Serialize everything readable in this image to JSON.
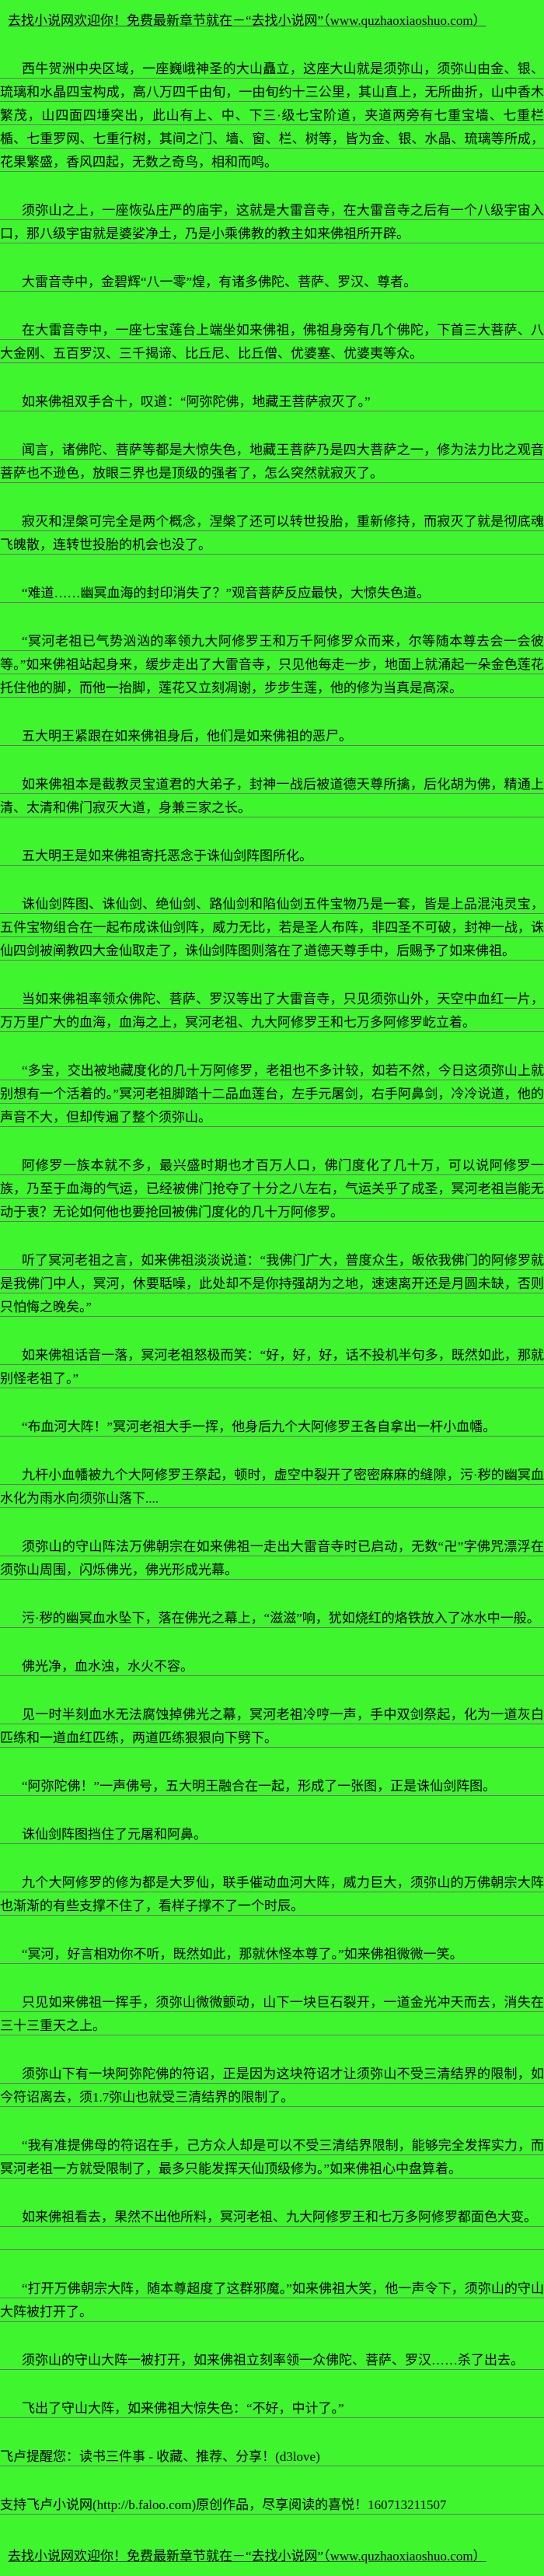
{
  "page": {
    "background_color": "#3ef52e",
    "text_color": "#000000",
    "rule_color": "#6f6f6f"
  },
  "top_promo": {
    "text": "去找小说网欢迎你！免费最新章节就在－“去找小说网”（www.quzhaoxiaoshuo.com）",
    "site_url": "www.quzhaoxiaoshuo.com"
  },
  "content": {
    "paragraphs": [
      {
        "text": "西牛贺洲中央区域，一座巍峨神圣的大山矗立，这座大山就是须弥山，须弥山由金、银、琉璃和水晶四宝构成，高八万四千由旬，一由旬约十三公里，其山直上，无所曲折，山中香木繁茂，山四面四埵突出，此山有上、中、下三·级七宝阶道，夹道两旁有七重宝墙、七重栏楯、七重罗网、七重行树，其间之门、墙、窗、栏、树等，皆为金、银、水晶、琉璃等所成，花果繁盛，香风四起，无数之奇鸟，相和而鸣。",
        "classes": ""
      },
      {
        "text": "须弥山之上，一座恢弘庄严的庙宇，这就是大雷音寺，在大雷音寺之后有一个八级宇宙入口，那八级宇宙就是婆娑净土，乃是小乘佛教的教主如来佛祖所开辟。",
        "classes": ""
      },
      {
        "text": "大雷音寺中，金碧辉“八一零”煌，有诸多佛陀、菩萨、罗汉、尊者。",
        "classes": ""
      },
      {
        "text": "在大雷音寺中，一座七宝莲台上端坐如来佛祖，佛祖身旁有几个佛陀，下首三大菩萨、八大金刚、五百罗汉、三千揭谛、比丘尼、比丘僧、优婆塞、优婆夷等众。",
        "classes": ""
      },
      {
        "text": "如来佛祖双手合十，叹道：“阿弥陀佛，地藏王菩萨寂灭了。”",
        "classes": ""
      },
      {
        "text": "闻言，诸佛陀、菩萨等都是大惊失色，地藏王菩萨乃是四大菩萨之一，修为法力比之观音菩萨也不逊色，放眼三界也是顶级的强者了，怎么突然就寂灭了。",
        "classes": ""
      },
      {
        "text": "寂灭和涅槃可完全是两个概念，涅槃了还可以转世投胎，重新修持，而寂灭了就是彻底魂飞魄散，连转世投胎的机会也没了。",
        "classes": ""
      },
      {
        "text": "“难道……幽冥血海的封印消失了？”观音菩萨反应最快，大惊失色道。",
        "classes": ""
      },
      {
        "text": "“冥河老祖已气势汹汹的率领九大阿修罗王和万千阿修罗众而来，尔等随本尊去会一会彼等。”如来佛祖站起身来，缓步走出了大雷音寺，只见他每走一步，地面上就涌起一朵金色莲花托住他的脚，而他一抬脚，莲花又立刻凋谢，步步生莲，他的修为当真是高深。",
        "classes": ""
      },
      {
        "text": "五大明王紧跟在如来佛祖身后，他们是如来佛祖的恶尸。",
        "classes": ""
      },
      {
        "text": "如来佛祖本是截教灵宝道君的大弟子，封神一战后被道德天尊所擒，后化胡为佛，精通上清、太清和佛门寂灭大道，身兼三家之长。",
        "classes": ""
      },
      {
        "text": "五大明王是如来佛祖寄托恶念于诛仙剑阵图所化。",
        "classes": ""
      },
      {
        "text": "诛仙剑阵图、诛仙剑、绝仙剑、路仙剑和陷仙剑五件宝物乃是一套，皆是上品混沌灵宝，五件宝物组合在一起布成诛仙剑阵，威力无比，若是圣人布阵，非四圣不可破，封神一战，诛仙四剑被阐教四大金仙取走了，诛仙剑阵图则落在了道德天尊手中，后赐予了如来佛祖。",
        "classes": ""
      },
      {
        "text": "当如来佛祖率领众佛陀、菩萨、罗汉等出了大雷音寺，只见须弥山外，天空中血红一片，万万里广大的血海，血海之上，冥河老祖、九大阿修罗王和七万多阿修罗屹立着。",
        "classes": ""
      },
      {
        "text": "“多宝，交出被地藏度化的几十万阿修罗，老祖也不多计较，如若不然，今日这须弥山上就别想有一个活着的。”冥河老祖脚踏十二品血莲台，左手元屠剑，右手阿鼻剑，冷冷说道，他的声音不大，但却传遍了整个须弥山。",
        "classes": ""
      },
      {
        "text": "阿修罗一族本就不多，最兴盛时期也才百万人口，佛门度化了几十万，可以说阿修罗一族，乃至于血海的气运，已经被佛门抢夺了十分之八左右，气运关乎了成圣，冥河老祖岂能无动于衷？无论如何他也要抢回被佛门度化的几十万阿修罗。",
        "classes": ""
      },
      {
        "text": "听了冥河老祖之言，如来佛祖淡淡说道：“我佛门广大，普度众生，皈依我佛门的阿修罗就是我佛门中人，冥河，休要聒噪，此处却不是你持强胡为之地，速速离开还是月圆未缺，否则只怕悔之晚矣。”",
        "classes": ""
      },
      {
        "text": "如来佛祖话音一落，冥河老祖怒极而笑：“好，好，好，话不投机半句多，既然如此，那就别怪老祖了。”",
        "classes": ""
      },
      {
        "text": "“布血河大阵！”冥河老祖大手一挥，他身后九个大阿修罗王各自拿出一杆小血幡。",
        "classes": ""
      },
      {
        "text": "九杆小血幡被九个大阿修罗王祭起，顿时，虚空中裂开了密密麻麻的缝隙，污·秽的幽冥血水化为雨水向须弥山落下....",
        "classes": ""
      },
      {
        "text": "须弥山的守山阵法万佛朝宗在如来佛祖一走出大雷音寺时已启动，无数“卍”字佛咒漂浮在须弥山周围，闪烁佛光，佛光形成光幕。",
        "classes": ""
      },
      {
        "text": "污·秽的幽冥血水坠下，落在佛光之幕上，“滋滋”响，犹如烧红的烙铁放入了冰水中一般。",
        "classes": ""
      },
      {
        "text": "佛光净，血水浊，水火不容。",
        "classes": ""
      },
      {
        "text": "见一时半刻血水无法腐蚀掉佛光之幕，冥河老祖冷哼一声，手中双剑祭起，化为一道灰白匹练和一道血红匹练，两道匹练狠狠向下劈下。",
        "classes": ""
      },
      {
        "text": "“阿弥陀佛！”一声佛号，五大明王融合在一起，形成了一张图，正是诛仙剑阵图。",
        "classes": ""
      },
      {
        "text": "诛仙剑阵图挡住了元屠和阿鼻。",
        "classes": ""
      },
      {
        "text": "九个大阿修罗的修为都是大罗仙，联手催动血河大阵，威力巨大，须弥山的万佛朝宗大阵也渐渐的有些支撑不住了，看样子撑不了一个时辰。",
        "classes": ""
      },
      {
        "text": "“冥河，好言相劝你不听，既然如此，那就休怪本尊了。”如来佛祖微微一笑。",
        "classes": ""
      },
      {
        "text": "只见如来佛祖一挥手，须弥山微微颤动，山下一块巨石裂开，一道金光冲天而去，消失在三十三重天之上。",
        "classes": ""
      },
      {
        "text": "须弥山下有一块阿弥陀佛的符诏，正是因为这块符诏才让须弥山不受三清结界的限制，如今符诏离去，须1.7弥山也就受三清结界的限制了。",
        "classes": ""
      },
      {
        "text": "“我有准提佛母的符诏在手，己方众人却是可以不受三清结界限制，能够完全发挥实力，而冥河老祖一方就受限制了，最多只能发挥天仙顶级修为。”如来佛祖心中盘算着。",
        "classes": ""
      },
      {
        "text": "如来佛祖看去，果然不出他所料，冥河老祖、九大阿修罗王和七万多阿修罗都面色大变。",
        "classes": "blank-after"
      },
      {
        "text": "“打开万佛朝宗大阵，随本尊超度了这群邪魔。”如来佛祖大笑，他一声令下，须弥山的守山大阵被打开了。",
        "classes": ""
      },
      {
        "text": "须弥山的守山大阵一被打开，如来佛祖立刻率领一众佛陀、菩萨、罗汉……杀了出去。",
        "classes": ""
      },
      {
        "text": "飞出了守山大阵，如来佛祖大惊失色：“不好，中计了。”",
        "classes": ""
      },
      {
        "text": "飞卢提醒您：读书三件事 - 收藏、推荐、分享！(d3love)",
        "classes": "flush"
      },
      {
        "text": "支持飞卢小说网(http://b.faloo.com)原创作品，尽享阅读的喜悦！160713211507",
        "classes": "flush"
      }
    ]
  },
  "bottom_promo": {
    "text": "去找小说网欢迎你！免费最新章节就在－“去找小说网”（www.quzhaoxiaoshuo.com）",
    "site_url": "www.quzhaoxiaoshuo.com"
  }
}
